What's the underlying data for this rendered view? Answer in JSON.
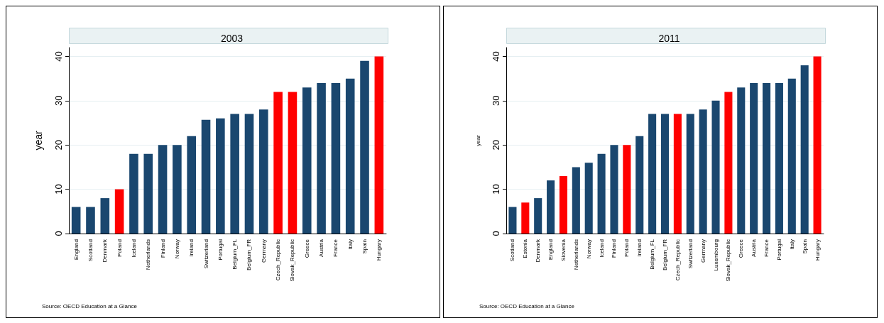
{
  "chart_data": [
    {
      "type": "bar",
      "title": "2003",
      "ylabel": "year",
      "categories": [
        "England",
        "Scotland",
        "Denmark",
        "Poland",
        "Iceland",
        "Netherlands",
        "Finland",
        "Norway",
        "Ireland",
        "Switzerland",
        "Portugal",
        "Belgium_FL",
        "Belgium_FR",
        "Germany",
        "Czech_Republic",
        "Slovak_Republic",
        "Greece",
        "Austria",
        "France",
        "Italy",
        "Spain",
        "Hungary"
      ],
      "values": [
        6,
        6,
        8,
        10,
        18,
        18,
        20,
        20,
        22,
        25.7,
        26,
        27,
        27,
        28,
        32,
        32,
        33,
        34,
        34,
        35,
        39,
        40
      ],
      "colors": [
        "#1a476f",
        "#1a476f",
        "#1a476f",
        "#ff0000",
        "#1a476f",
        "#1a476f",
        "#1a476f",
        "#1a476f",
        "#1a476f",
        "#1a476f",
        "#1a476f",
        "#1a476f",
        "#1a476f",
        "#1a476f",
        "#ff0000",
        "#ff0000",
        "#1a476f",
        "#1a476f",
        "#1a476f",
        "#1a476f",
        "#1a476f",
        "#ff0000"
      ],
      "ylim": [
        0,
        42
      ],
      "yticks": [
        0,
        10,
        20,
        30,
        40
      ],
      "grid": "y",
      "annotations": [
        "Source: OECD Education at a Glance"
      ]
    },
    {
      "type": "bar",
      "title": "2011",
      "ylabel": "year",
      "categories": [
        "Scotland",
        "Estonia",
        "Denmark",
        "England",
        "Slovenia",
        "Netherlands",
        "Norway",
        "Iceland",
        "Finland",
        "Poland",
        "Ireland",
        "Belgium_FL",
        "Belgium_FR",
        "Czech_Republic",
        "Switzerland",
        "Germany",
        "Luxembourg",
        "Slovak_Republic",
        "Greece",
        "Austria",
        "France",
        "Portugal",
        "Italy",
        "Spain",
        "Hungary"
      ],
      "values": [
        6,
        7,
        8,
        12,
        13,
        15,
        16,
        18,
        20,
        20,
        22,
        27,
        27,
        27,
        27,
        28,
        30,
        32,
        33,
        34,
        34,
        34,
        35,
        38,
        40
      ],
      "colors": [
        "#1a476f",
        "#ff0000",
        "#1a476f",
        "#1a476f",
        "#ff0000",
        "#1a476f",
        "#1a476f",
        "#1a476f",
        "#1a476f",
        "#ff0000",
        "#1a476f",
        "#1a476f",
        "#1a476f",
        "#ff0000",
        "#1a476f",
        "#1a476f",
        "#1a476f",
        "#ff0000",
        "#1a476f",
        "#1a476f",
        "#1a476f",
        "#1a476f",
        "#1a476f",
        "#1a476f",
        "#ff0000"
      ],
      "ylim": [
        0,
        42
      ],
      "yticks": [
        0,
        10,
        20,
        30,
        40
      ],
      "grid": "y",
      "annotations": [
        "Source: OECD Education at a Glance"
      ]
    }
  ]
}
